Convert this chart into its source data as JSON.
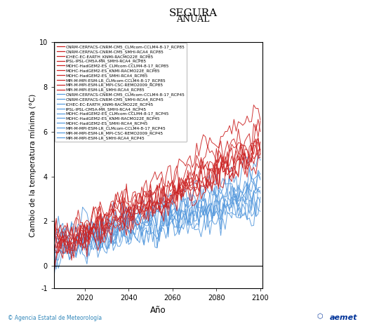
{
  "title": "SEGURA",
  "subtitle": "ANUAL",
  "ylabel": "Cambio de la temperatura mínima (°C)",
  "xlabel": "Año",
  "xlim": [
    2006,
    2101
  ],
  "ylim": [
    -1,
    10
  ],
  "yticks": [
    -1,
    0,
    2,
    4,
    6,
    8,
    10
  ],
  "xticks": [
    2020,
    2040,
    2060,
    2080,
    2100
  ],
  "rcp85_color": "#CC2222",
  "rcp45_color": "#5599DD",
  "rcp85_labels": [
    "CNRM-CERFACS-CNRM-CM5_CLMcom-CCLM4-8-17_RCP85",
    "CNRM-CERFACS-CNRM-CM5_SMHI-RCA4_RCP85",
    "ICHEC-EC-EARTH_KNMI-RACMO22E_RCP85",
    "IPSL-IPSL-CM5A-MR_SMHI-RCA4_RCP85",
    "MOHC-HadGEM2-ES_CLMcom-CCLM4-8-17_RCP85",
    "MOHC-HadGEM2-ES_KNMI-RACMO22E_RCP85",
    "MOHC-HadGEM2-ES_SMHI-RCA4_RCP85",
    "MPI-M-MPI-ESM-LR_CLMcom-CCLM4-8-17_RCP85",
    "MPI-M-MPI-ESM-LR_MPI-CSC-REMO2009_RCP85",
    "MPI-M-MPI-ESM-LR_SMHI-RCA4_RCP85"
  ],
  "rcp45_labels": [
    "CNRM-CERFACS-CNRM-CM5_CLMcom-CCLM4-8-17_RCP45",
    "CNRM-CERFACS-CNRM-CM5_SMHI-RCA4_RCP45",
    "ICHEC-EC-EARTH_KNMI-RACMO22E_RCP45",
    "IPSL-IPSL-CM5A-MR_SMHI-RCA4_RCP45",
    "MOHC-HadGEM2-ES_CLMcom-CCLM4-8-17_RCP45",
    "MOHC-HadGEM2-ES_KNMI-RACMO22E_RCP45",
    "MOHC-HadGEM2-ES_SMHI-RCA4_RCP45",
    "MPI-M-MPI-ESM-LR_CLMcom-CCLM4-8-17_RCP45",
    "MPI-M-MPI-ESM-LR_MPI-CSC-REMO2009_RCP45",
    "MPI-M-MPI-ESM-LR_SMHI-RCA4_RCP45"
  ],
  "footer_left": "© Agencia Estatal de Meteorología",
  "start_year": 2006,
  "end_year": 2100,
  "n_rcp85": 10,
  "n_rcp45": 10,
  "rcp85_end_means": [
    5.5,
    4.8,
    4.6,
    5.3,
    6.8,
    5.2,
    5.0,
    4.4,
    5.6,
    4.5
  ],
  "rcp45_end_means": [
    2.9,
    2.6,
    2.4,
    3.1,
    4.2,
    3.6,
    2.9,
    2.7,
    3.3,
    2.5
  ]
}
